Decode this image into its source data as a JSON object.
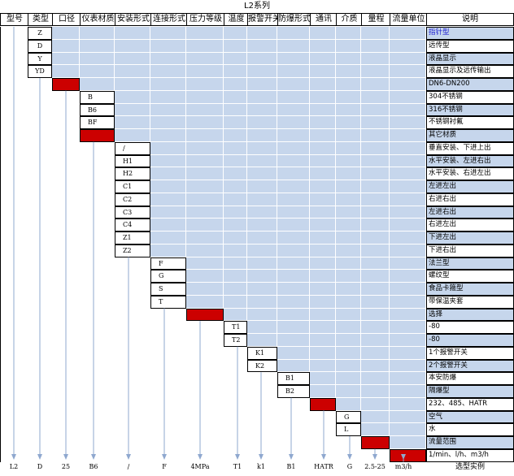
{
  "title": "L2系列",
  "headers": [
    "型号",
    "类型",
    "口径",
    "仪表材质",
    "安装形式",
    "连接形式",
    "压力等级",
    "温度",
    "报警开关",
    "防爆形式",
    "通讯",
    "介质",
    "量程",
    "流量单位",
    "说明"
  ],
  "rows": [
    {
      "col": 1,
      "code": "Z",
      "desc": "指针型",
      "desc_color": "#2020d0"
    },
    {
      "col": 1,
      "code": "D",
      "desc": "远传型"
    },
    {
      "col": 1,
      "code": "Y",
      "desc": "液晶显示"
    },
    {
      "col": 1,
      "code": "YD",
      "desc": "液晶显示及远传输出"
    },
    {
      "col": 2,
      "code": "",
      "desc": "DN6-DN200",
      "red": true
    },
    {
      "col": 3,
      "code": "B",
      "desc": "304不锈钢"
    },
    {
      "col": 3,
      "code": "B6",
      "desc": "316不锈钢"
    },
    {
      "col": 3,
      "code": "BF",
      "desc": "不锈钢衬氟"
    },
    {
      "col": 3,
      "code": "",
      "desc": "其它材质",
      "red": true
    },
    {
      "col": 4,
      "code": "/",
      "desc": "垂直安装、下进上出"
    },
    {
      "col": 4,
      "code": "H1",
      "desc": "水平安装、左进右出"
    },
    {
      "col": 4,
      "code": "H2",
      "desc": "水平安装、右进左出"
    },
    {
      "col": 4,
      "code": "C1",
      "desc": "左进左出"
    },
    {
      "col": 4,
      "code": "C2",
      "desc": "右进右出"
    },
    {
      "col": 4,
      "code": "C3",
      "desc": "左进右出"
    },
    {
      "col": 4,
      "code": "C4",
      "desc": "右进左出"
    },
    {
      "col": 4,
      "code": "Z1",
      "desc": "下进左出"
    },
    {
      "col": 4,
      "code": "Z2",
      "desc": "下进右出"
    },
    {
      "col": 5,
      "code": "F",
      "desc": "法兰型"
    },
    {
      "col": 5,
      "code": "G",
      "desc": "螺纹型"
    },
    {
      "col": 5,
      "code": "S",
      "desc": "食品卡箍型"
    },
    {
      "col": 5,
      "code": "T",
      "desc": "带保温夹套"
    },
    {
      "col": 6,
      "code": "",
      "desc": "选择",
      "red": true
    },
    {
      "col": 7,
      "code": "T1",
      "desc": "-80"
    },
    {
      "col": 7,
      "code": "T2",
      "desc": "-80"
    },
    {
      "col": 8,
      "code": "K1",
      "desc": "1个报警开关"
    },
    {
      "col": 8,
      "code": "K2",
      "desc": "2个报警开关"
    },
    {
      "col": 9,
      "code": "B1",
      "desc": "本安防爆"
    },
    {
      "col": 9,
      "code": "B2",
      "desc": "隔爆型"
    },
    {
      "col": 10,
      "code": "",
      "desc": "232、485、HATR",
      "red": true
    },
    {
      "col": 11,
      "code": "G",
      "desc": "空气"
    },
    {
      "col": 11,
      "code": "L",
      "desc": "水"
    },
    {
      "col": 12,
      "code": "",
      "desc": "流量范围",
      "red": true
    },
    {
      "col": 13,
      "code": "",
      "desc": "1/min、l/h、m3/h",
      "red": true
    }
  ],
  "footer": [
    "L2",
    "D",
    "25",
    "B6",
    "/",
    "F",
    "4MPa",
    "T1",
    "k1",
    "B1",
    "HATR",
    "G",
    "2.5-25",
    "m3/h",
    "选型实例"
  ],
  "colors": {
    "blue": "#c6d6ec",
    "red": "#cc0000",
    "arrow": "#8fa8cf",
    "border": "#000000"
  }
}
